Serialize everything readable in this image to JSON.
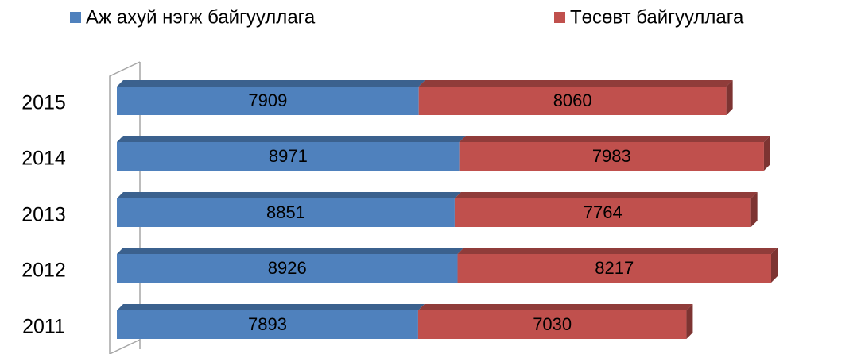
{
  "chart_data": {
    "type": "stacked-bar-horizontal",
    "categories": [
      "2015",
      "2014",
      "2013",
      "2012",
      "2011"
    ],
    "series": [
      {
        "name": "Аж ахуй нэгж байгууллага",
        "color": "#4f81bd",
        "values": [
          7909,
          8971,
          8851,
          8926,
          7893
        ]
      },
      {
        "name": "Төсөвт байгууллага",
        "color": "#c0504d",
        "values": [
          8060,
          7983,
          7764,
          8217,
          7030
        ]
      }
    ],
    "legend": "top"
  }
}
